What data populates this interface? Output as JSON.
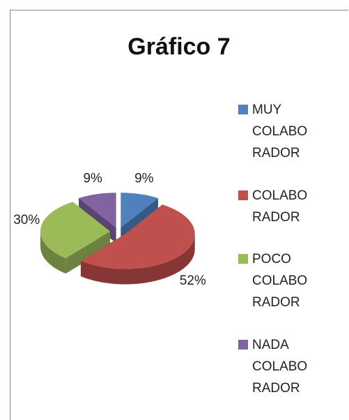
{
  "chart_data": {
    "type": "pie",
    "title": "Gráfico 7",
    "categories": [
      "MUY COLABORADOR",
      "COLABORADOR",
      "POCO COLABORADOR",
      "NADA COLABORADOR"
    ],
    "values": [
      9,
      52,
      30,
      9
    ],
    "value_labels": [
      "9%",
      "52%",
      "30%",
      "9%"
    ],
    "colors": [
      "#4f81bd",
      "#c0504d",
      "#9bbb59",
      "#8064a2"
    ],
    "legend": "right"
  }
}
